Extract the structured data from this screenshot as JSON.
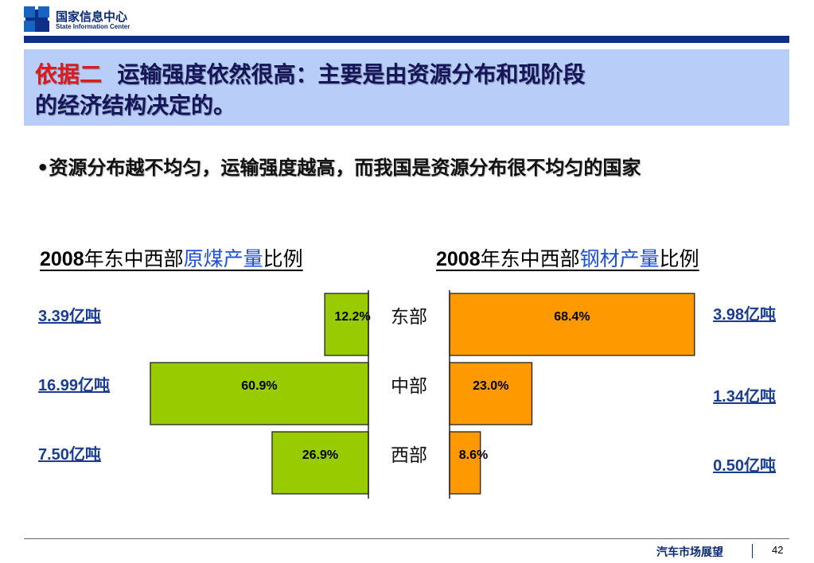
{
  "header": {
    "org_cn": "国家信息中心",
    "org_en": "State Information Center"
  },
  "title": {
    "highlight": "依据二",
    "line1_rest": "运输强度依然很高：主要是由资源分布和现阶段",
    "line2": "的经济结构决定的。"
  },
  "bullet": {
    "mark": "•",
    "text": "资源分布越不均匀，运输强度越高，而我国是资源分布很不均匀的国家"
  },
  "colors": {
    "coal": "#99cc00",
    "steel": "#ff9900",
    "accent": "#e0191c",
    "title_band": "#b8cdf7",
    "navy": "#0d2f86",
    "label_blue": "#1a3d8f"
  },
  "chart_data": [
    {
      "type": "bar",
      "orientation": "horizontal",
      "direction": "right-to-left",
      "title_parts": [
        "2008",
        "年东中西部",
        "原煤产量",
        "比例"
      ],
      "categories": [
        "东部",
        "中部",
        "西部"
      ],
      "values": [
        12.2,
        60.9,
        26.9
      ],
      "value_labels": [
        "12.2%",
        "60.9%",
        "26.9%"
      ],
      "side_labels": [
        "3.39亿吨",
        "16.99亿吨",
        "7.50亿吨"
      ],
      "color": "#99cc00"
    },
    {
      "type": "bar",
      "orientation": "horizontal",
      "direction": "left-to-right",
      "title_parts": [
        "2008",
        "年东中西部",
        "钢材产量",
        "比例"
      ],
      "categories": [
        "东部",
        "中部",
        "西部"
      ],
      "values": [
        68.4,
        23.0,
        8.6
      ],
      "value_labels": [
        "68.4%",
        "23.0%",
        "8.6%"
      ],
      "side_labels": [
        "3.98亿吨",
        "1.34亿吨",
        "0.50亿吨"
      ],
      "color": "#ff9900"
    }
  ],
  "footer": {
    "name": "汽车市场展望",
    "page": "42"
  }
}
